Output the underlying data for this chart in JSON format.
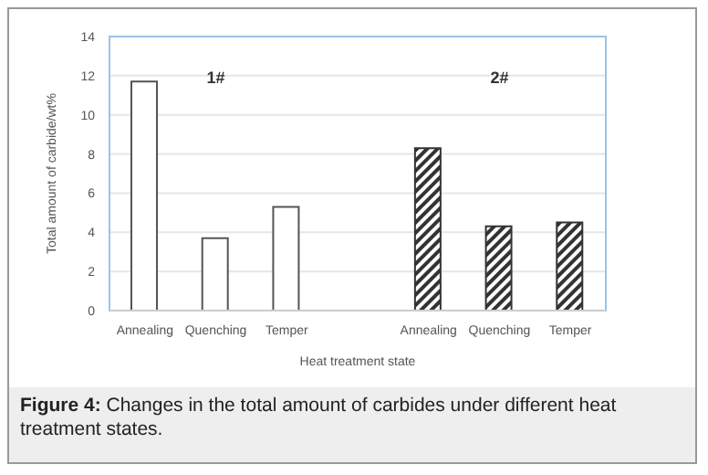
{
  "chart_data": {
    "type": "bar",
    "xlabel": "Heat treatment state",
    "ylabel": "Total amount of carbide/wt%",
    "categories": [
      "Annealing",
      "Quenching",
      "Temper",
      null,
      "Annealing",
      "Quenching",
      "Temper"
    ],
    "series": [
      {
        "color": "#ffffff",
        "values": [
          11.7,
          3.7,
          5.3,
          null,
          null,
          null,
          null
        ]
      },
      {
        "color": "#333333",
        "values": [
          null,
          null,
          null,
          null,
          8.3,
          4.3,
          4.5
        ]
      }
    ],
    "ylim": [
      0,
      14
    ],
    "yticks": [
      0,
      2,
      4,
      6,
      8,
      10,
      12,
      14
    ],
    "grid": "y",
    "annotations": [
      "1#",
      "2#",
      "Figure 4: Changes in the total amount of carbides under different heat treatment states."
    ]
  }
}
